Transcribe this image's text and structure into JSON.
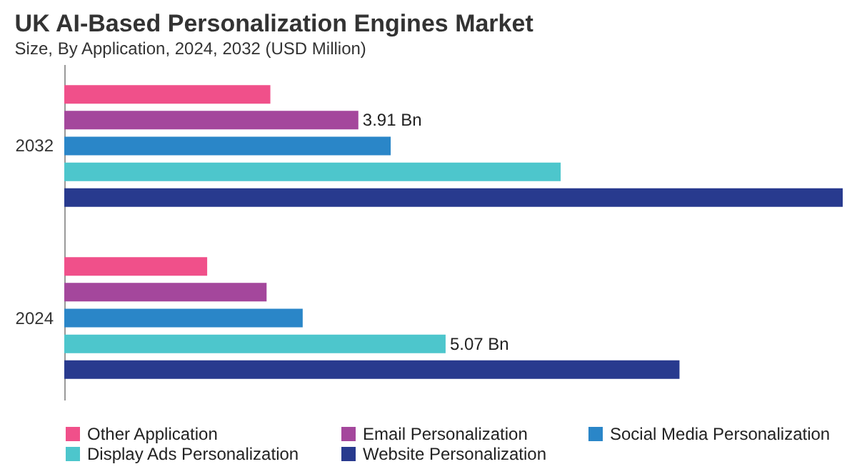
{
  "chart_data": {
    "type": "bar",
    "orientation": "horizontal",
    "title": "UK AI-Based Personalization Engines Market",
    "subtitle": "Size, By Application, 2024, 2032 (USD Million)",
    "categories": [
      "2032",
      "2024"
    ],
    "legend": "bottom",
    "series": [
      {
        "name": "Other Application",
        "color": "#f0508a",
        "values": [
          2.74,
          1.9
        ]
      },
      {
        "name": "Email Personalization",
        "color": "#a4479c",
        "values": [
          3.91,
          2.69
        ],
        "value_labels": [
          "3.91 Bn",
          null
        ]
      },
      {
        "name": "Social Media Personalization",
        "color": "#2a86c8",
        "values": [
          4.34,
          3.17
        ]
      },
      {
        "name": "Display Ads Personalization",
        "color": "#4dc6cc",
        "values": [
          6.6,
          5.07
        ],
        "value_labels": [
          null,
          "5.07 Bn"
        ]
      },
      {
        "name": "Website Personalization",
        "color": "#283a8e",
        "values": [
          10.35,
          8.18
        ]
      }
    ]
  }
}
